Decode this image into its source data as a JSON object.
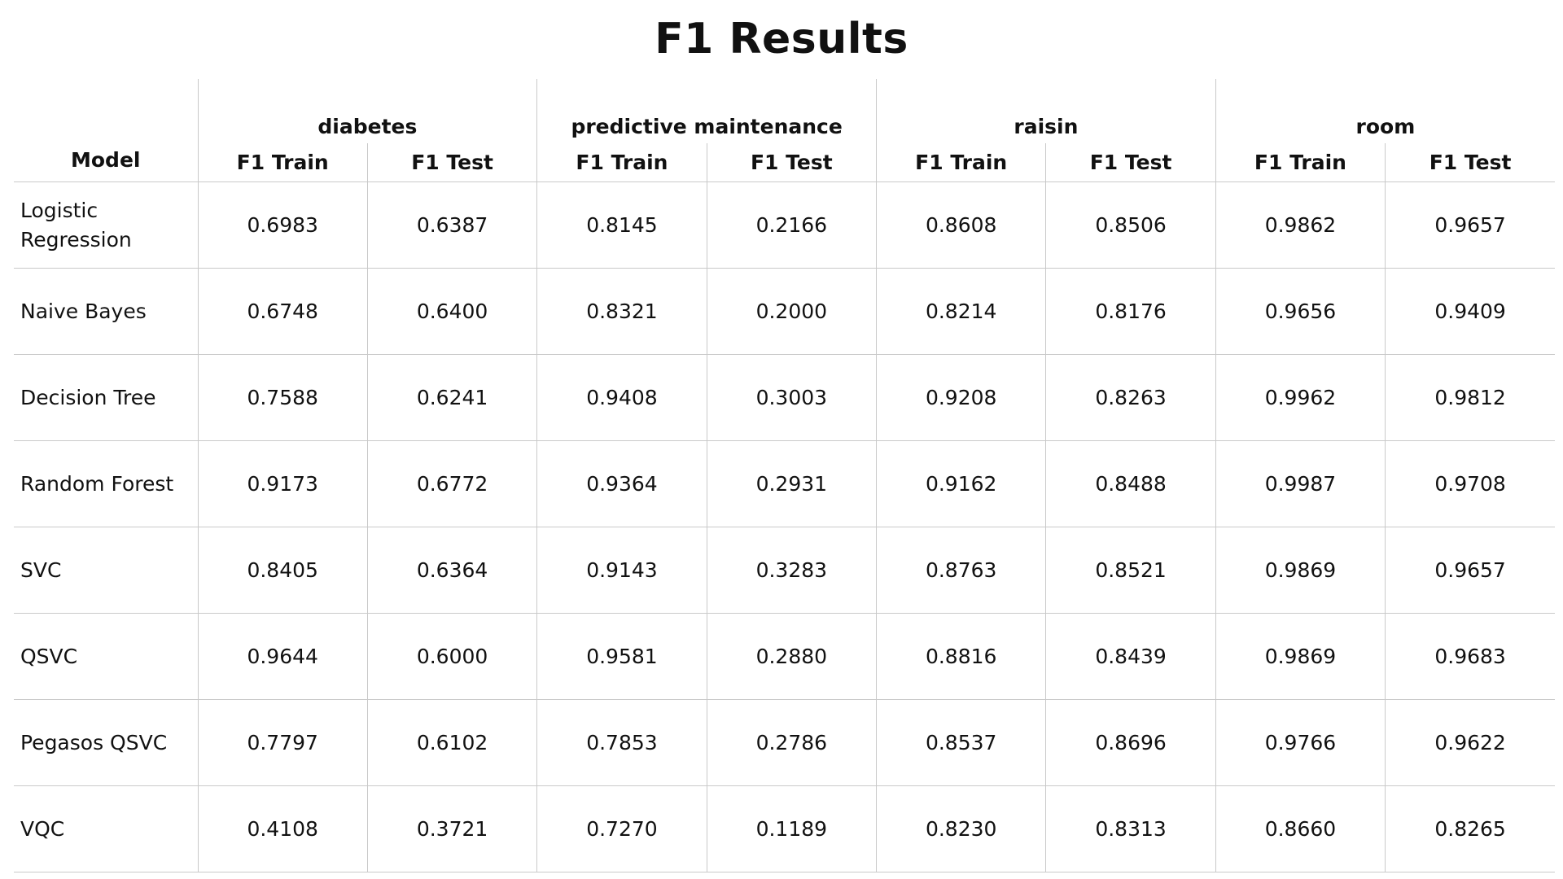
{
  "chart_data": {
    "type": "table",
    "title": "F1 Results",
    "model_header": "Model",
    "datasets": [
      "diabetes",
      "predictive maintenance",
      "raisin",
      "room"
    ],
    "metrics": [
      "F1 Train",
      "F1 Test"
    ],
    "rows": [
      {
        "model": "Logistic Regression",
        "values": [
          "0.6983",
          "0.6387",
          "0.8145",
          "0.2166",
          "0.8608",
          "0.8506",
          "0.9862",
          "0.9657"
        ]
      },
      {
        "model": "Naive Bayes",
        "values": [
          "0.6748",
          "0.6400",
          "0.8321",
          "0.2000",
          "0.8214",
          "0.8176",
          "0.9656",
          "0.9409"
        ]
      },
      {
        "model": "Decision Tree",
        "values": [
          "0.7588",
          "0.6241",
          "0.9408",
          "0.3003",
          "0.9208",
          "0.8263",
          "0.9962",
          "0.9812"
        ]
      },
      {
        "model": "Random Forest",
        "values": [
          "0.9173",
          "0.6772",
          "0.9364",
          "0.2931",
          "0.9162",
          "0.8488",
          "0.9987",
          "0.9708"
        ]
      },
      {
        "model": "SVC",
        "values": [
          "0.8405",
          "0.6364",
          "0.9143",
          "0.3283",
          "0.8763",
          "0.8521",
          "0.9869",
          "0.9657"
        ]
      },
      {
        "model": "QSVC",
        "values": [
          "0.9644",
          "0.6000",
          "0.9581",
          "0.2880",
          "0.8816",
          "0.8439",
          "0.9869",
          "0.9683"
        ]
      },
      {
        "model": "Pegasos QSVC",
        "values": [
          "0.7797",
          "0.6102",
          "0.7853",
          "0.2786",
          "0.8537",
          "0.8696",
          "0.9766",
          "0.9622"
        ]
      },
      {
        "model": "VQC",
        "values": [
          "0.4108",
          "0.3721",
          "0.7270",
          "0.1189",
          "0.8230",
          "0.8313",
          "0.8660",
          "0.8265"
        ]
      }
    ]
  }
}
